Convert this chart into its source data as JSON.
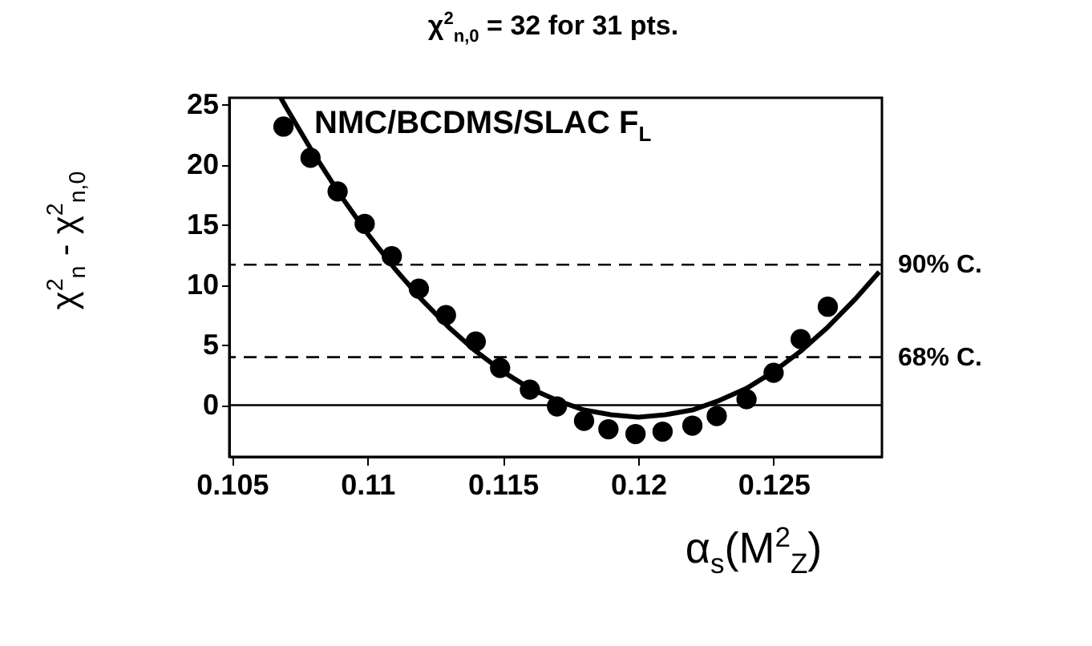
{
  "chart_data": {
    "type": "scatter",
    "title": "χ$^{2}$$_{n,0}$ = 32 for 31 pts.",
    "xlabel": "α$_{s}$(M$^{2}$$_{Z}$)",
    "ylabel": "χ$^{2}$$_{n}$ - χ$^{2}$$_{n,0}$",
    "annotations": [
      "NMC/BCDMS/SLAC F$_{L}$"
    ],
    "xlim": [
      0.1049,
      0.129
    ],
    "xticks": [
      0.105,
      0.11,
      0.115,
      0.12,
      0.125
    ],
    "ylim": [
      -4.3,
      25.6
    ],
    "yticks": [
      0,
      5,
      10,
      15,
      20,
      25
    ],
    "series": [
      {
        "marker": "circle",
        "color": "#000000",
        "x": [
          0.1069,
          0.1079,
          0.1089,
          0.1099,
          0.1109,
          0.1119,
          0.1129,
          0.114,
          0.1149,
          0.116,
          0.117,
          0.118,
          0.1189,
          0.1199,
          0.1209,
          0.122,
          0.1229,
          0.124,
          0.125,
          0.126,
          0.127
        ],
        "values": [
          23.2,
          20.6,
          17.8,
          15.1,
          12.4,
          9.7,
          7.5,
          5.3,
          3.1,
          1.3,
          -0.1,
          -1.3,
          -2.0,
          -2.4,
          -2.2,
          -1.7,
          -0.9,
          0.5,
          2.7,
          5.5,
          8.2
        ]
      },
      {
        "type": "line",
        "color": "#000000",
        "x": [
          0.1068,
          0.107,
          0.108,
          0.109,
          0.11,
          0.111,
          0.112,
          0.113,
          0.114,
          0.115,
          0.116,
          0.117,
          0.118,
          0.119,
          0.12,
          0.121,
          0.122,
          0.123,
          0.124,
          0.125,
          0.126,
          0.127,
          0.128,
          0.1289
        ],
        "values": [
          25.6,
          24.8,
          21.0,
          17.5,
          14.3,
          11.4,
          8.8,
          6.5,
          4.5,
          2.8,
          1.4,
          0.4,
          -0.4,
          -0.8,
          -1.0,
          -0.8,
          -0.4,
          0.4,
          1.4,
          2.8,
          4.5,
          6.5,
          8.8,
          11.1
        ]
      }
    ],
    "ref_lines": [
      {
        "axis": "y",
        "value": 11.7,
        "label": "90% C.",
        "line_style": "dashed"
      },
      {
        "axis": "y",
        "value": 4.0,
        "label": "68% C.",
        "line_style": "dashed"
      },
      {
        "axis": "y",
        "value": 0,
        "line_style": "solid"
      }
    ]
  }
}
